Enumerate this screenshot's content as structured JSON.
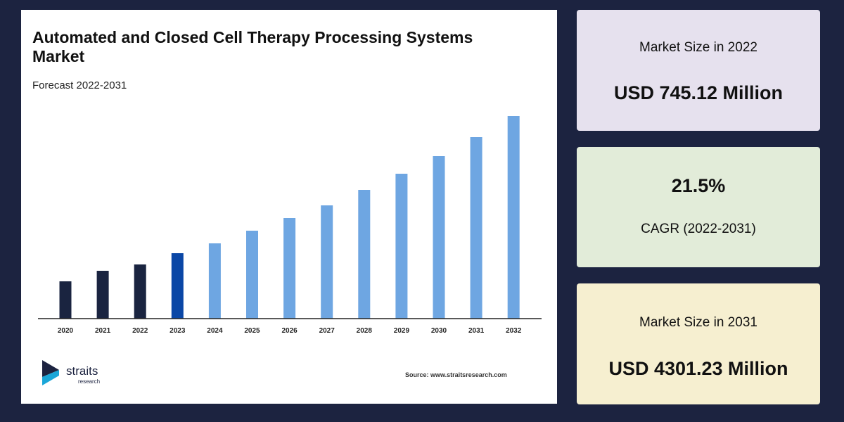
{
  "chart": {
    "title": "Automated and Closed Cell Therapy Processing Systems Market",
    "subtitle": "Forecast 2022-2031",
    "source": "Source: www.straitsresearch.com"
  },
  "logo": {
    "name": "straits",
    "sub": "research"
  },
  "chart_data": {
    "type": "bar",
    "categories": [
      "2020",
      "2021",
      "2022",
      "2023",
      "2024",
      "2025",
      "2026",
      "2027",
      "2028",
      "2029",
      "2030",
      "2031",
      "2032"
    ],
    "values": [
      53,
      68,
      77,
      93,
      107,
      125,
      143,
      161,
      183,
      206,
      231,
      258,
      288
    ],
    "bar_colors": [
      "#1a2440",
      "#1a2440",
      "#1a2440",
      "#0b47a6",
      "#6ea6e2",
      "#6ea6e2",
      "#6ea6e2",
      "#6ea6e2",
      "#6ea6e2",
      "#6ea6e2",
      "#6ea6e2",
      "#6ea6e2",
      "#6ea6e2"
    ],
    "ylim": [
      0,
      300
    ],
    "grid": false,
    "xlabel": "",
    "ylabel": ""
  },
  "stats": {
    "size_2022_label": "Market Size in 2022",
    "size_2022_value": "USD 745.12 Million",
    "cagr_value": "21.5%",
    "cagr_label": "CAGR (2022-2031)",
    "size_2031_label": "Market Size in 2031",
    "size_2031_value": "USD 4301.23 Million"
  }
}
